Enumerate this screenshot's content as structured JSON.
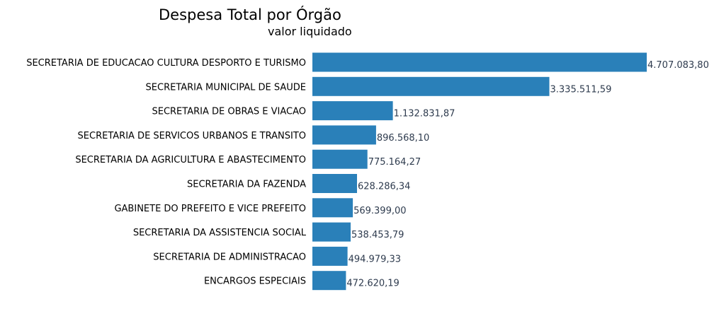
{
  "chart_data": {
    "type": "bar",
    "orientation": "horizontal",
    "title": "Despesa Total por Órgão",
    "subtitle": "valor liquidado",
    "bar_color": "#2a80b9",
    "value_label_color": "#2e3b4e",
    "grid": false,
    "categories": [
      "SECRETARIA DE EDUCACAO CULTURA DESPORTO E TURISMO",
      "SECRETARIA MUNICIPAL DE SAUDE",
      "SECRETARIA DE OBRAS E VIACAO",
      "SECRETARIA DE SERVICOS URBANOS E TRANSITO",
      "SECRETARIA DA AGRICULTURA E ABASTECIMENTO",
      "SECRETARIA DA FAZENDA",
      "GABINETE DO PREFEITO E VICE PREFEITO",
      "SECRETARIA DA ASSISTENCIA SOCIAL",
      "SECRETARIA DE ADMINISTRACAO",
      "ENCARGOS ESPECIAIS"
    ],
    "values": [
      4707083.8,
      3335511.59,
      1132831.87,
      896568.1,
      775164.27,
      628286.34,
      569399.0,
      538453.79,
      494979.33,
      472620.19
    ],
    "value_labels": [
      "4.707.083,80",
      "3.335.511,59",
      "1.132.831,87",
      "896.568,10",
      "775.164,27",
      "628.286,34",
      "569.399,00",
      "538.453,79",
      "494.979,33",
      "472.620,19"
    ]
  }
}
